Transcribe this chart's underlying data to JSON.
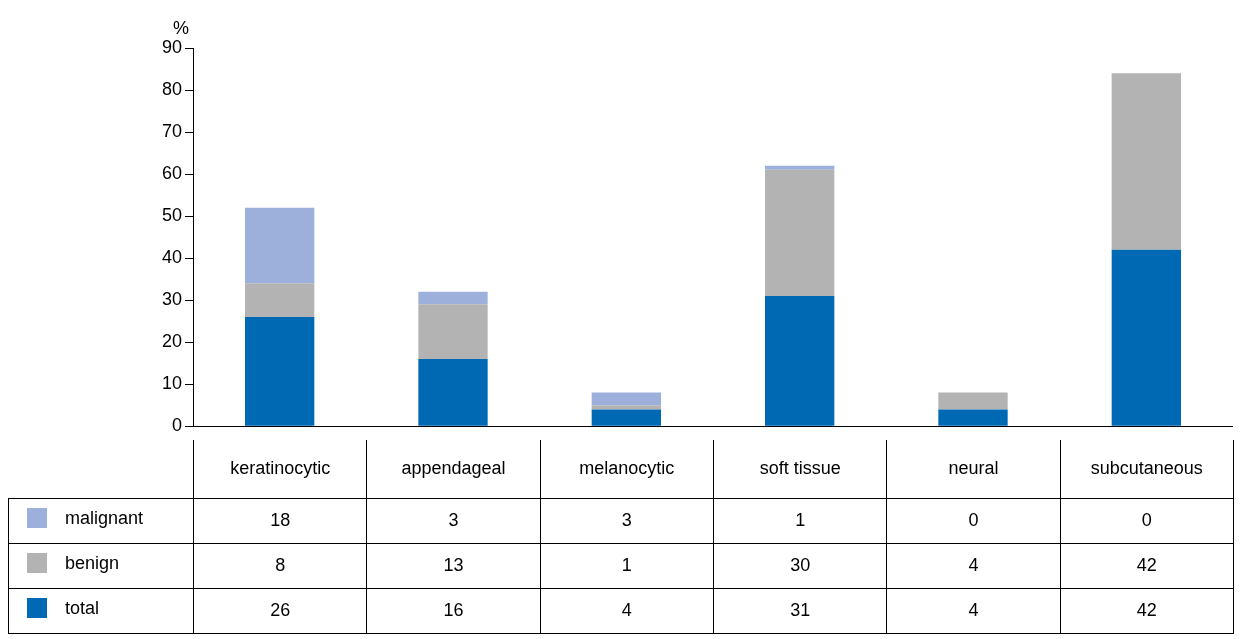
{
  "chart_data": {
    "type": "bar",
    "ylabel": "%",
    "categories": [
      "keratinocytic",
      "appendageal",
      "melanocytic",
      "soft tissue",
      "neural",
      "subcutaneous"
    ],
    "series": [
      {
        "name": "total",
        "color": "#0069b4",
        "values": [
          26,
          16,
          4,
          31,
          4,
          42
        ]
      },
      {
        "name": "benign",
        "color": "#b3b3b3",
        "values": [
          8,
          13,
          1,
          30,
          4,
          42
        ]
      },
      {
        "name": "malignant",
        "color": "#9dafdb",
        "values": [
          18,
          3,
          3,
          1,
          0,
          0
        ]
      }
    ],
    "stacked": true,
    "ylim": [
      0,
      90
    ],
    "yticks": [
      0,
      10,
      20,
      30,
      40,
      50,
      60,
      70,
      80,
      90
    ],
    "grid": false,
    "legend": "bottom",
    "data_labels": true
  }
}
